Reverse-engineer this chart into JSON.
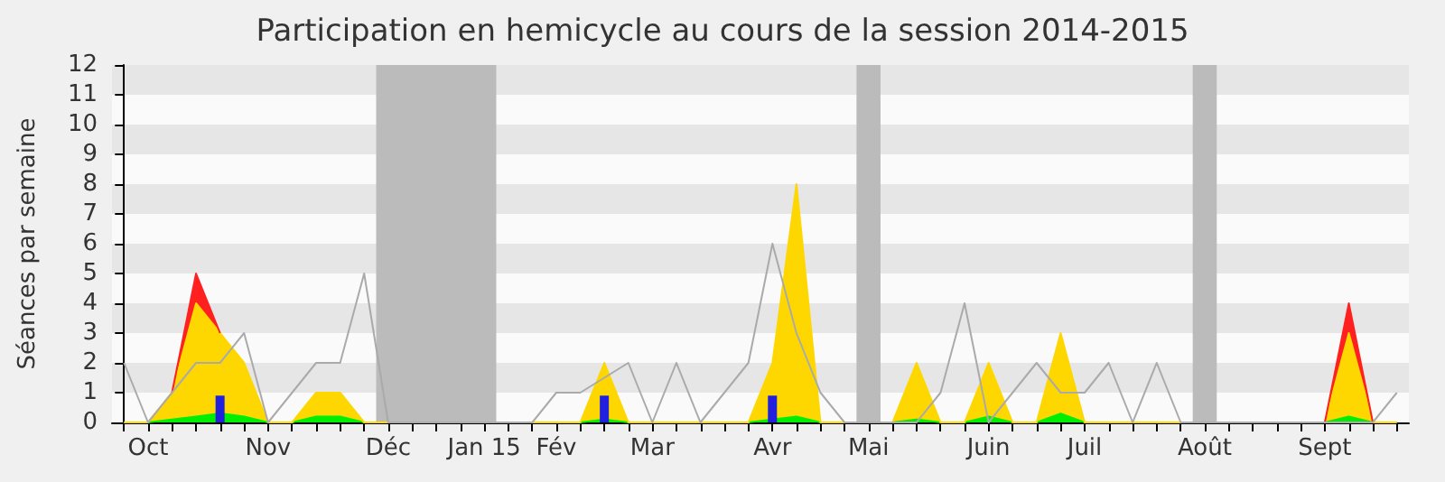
{
  "chart_data": {
    "type": "area",
    "title": "Participation en hemicycle au cours de la session 2014-2015",
    "ylabel": "Séances par semaine",
    "categories": [
      null,
      "Oct",
      null,
      null,
      null,
      null,
      "Nov",
      null,
      null,
      null,
      null,
      "Déc",
      null,
      null,
      null,
      "Jan 15",
      null,
      null,
      "Fév",
      null,
      null,
      null,
      "Mar",
      null,
      null,
      null,
      null,
      "Avr",
      null,
      null,
      null,
      "Mai",
      null,
      null,
      null,
      null,
      "Juin",
      null,
      null,
      null,
      "Juil",
      null,
      null,
      null,
      null,
      "Août",
      null,
      null,
      null,
      null,
      "Sept",
      null,
      null,
      null
    ],
    "ylim": [
      0,
      12
    ],
    "yticks": [
      0,
      1,
      2,
      3,
      4,
      5,
      6,
      7,
      8,
      9,
      10,
      11,
      12
    ],
    "stacked": true,
    "bands": [
      {
        "axis": "x",
        "from": "Déc",
        "to": "Jan 15",
        "color": "#bbbbbb"
      },
      {
        "axis": "x",
        "from": "Mai",
        "to": "Mai",
        "color": "#bbbbbb"
      },
      {
        "axis": "x",
        "from": "Août",
        "to": "Août",
        "color": "#bbbbbb"
      }
    ],
    "series": [
      {
        "color": "#00ee00",
        "values": [
          0,
          0,
          0.1,
          0.2,
          0.3,
          0.2,
          0,
          0,
          0.2,
          0.2,
          0,
          0,
          0,
          0,
          0,
          0,
          0,
          0,
          0,
          0,
          0.1,
          0,
          0,
          0,
          0,
          0,
          0,
          0.1,
          0.2,
          0,
          0,
          0,
          0,
          0.1,
          0,
          0,
          0.2,
          0,
          0,
          0.3,
          0,
          0,
          0,
          0,
          0,
          0,
          0,
          0,
          0,
          0,
          0,
          0.2,
          0,
          0
        ]
      },
      {
        "color": "#ffd700",
        "values": [
          0,
          0,
          0.9,
          3.8,
          2.7,
          1.8,
          0,
          0,
          0.8,
          0.8,
          0,
          0,
          0,
          0,
          0,
          0,
          0,
          0,
          0,
          0,
          1.9,
          0,
          0,
          0,
          0,
          0,
          0,
          1.9,
          7.8,
          0,
          0,
          0,
          0,
          1.9,
          0,
          0,
          1.8,
          0,
          0,
          2.7,
          0,
          0,
          0,
          0,
          0,
          0,
          0,
          0,
          0,
          0,
          0,
          2.8,
          0,
          0
        ]
      },
      {
        "color": "#ff2020",
        "values": [
          null,
          null,
          0,
          1,
          0,
          null,
          null,
          null,
          null,
          null,
          null,
          null,
          null,
          null,
          null,
          null,
          null,
          null,
          null,
          null,
          null,
          null,
          null,
          null,
          null,
          null,
          null,
          null,
          null,
          null,
          null,
          null,
          null,
          null,
          null,
          null,
          null,
          null,
          null,
          null,
          null,
          null,
          null,
          null,
          null,
          null,
          null,
          null,
          null,
          null,
          0,
          1,
          0,
          null
        ]
      },
      {
        "type": "line",
        "color": "#aaaaaa",
        "values": [
          2,
          0,
          1,
          2,
          2,
          3,
          0,
          1,
          2,
          2,
          5,
          0,
          0,
          0,
          0,
          0,
          0,
          0,
          1,
          1,
          1.5,
          2,
          0,
          2,
          0,
          1,
          2,
          6,
          3,
          1,
          0,
          0,
          0,
          0,
          1,
          4,
          0,
          1,
          2,
          1,
          1,
          2,
          0,
          2,
          0,
          0,
          0,
          0,
          0,
          0,
          0,
          0,
          0,
          1
        ]
      },
      {
        "type": "bar",
        "color": "#2020dd",
        "values": [
          null,
          null,
          null,
          null,
          0.9,
          null,
          null,
          null,
          null,
          null,
          null,
          null,
          null,
          null,
          null,
          null,
          null,
          null,
          null,
          null,
          0.9,
          null,
          null,
          null,
          null,
          null,
          null,
          0.9,
          null,
          null,
          null,
          null,
          null,
          null,
          null,
          null,
          null,
          null,
          null,
          null,
          null,
          null,
          null,
          null,
          null,
          null,
          null,
          null,
          null,
          null,
          null,
          null,
          null,
          null
        ]
      }
    ]
  }
}
